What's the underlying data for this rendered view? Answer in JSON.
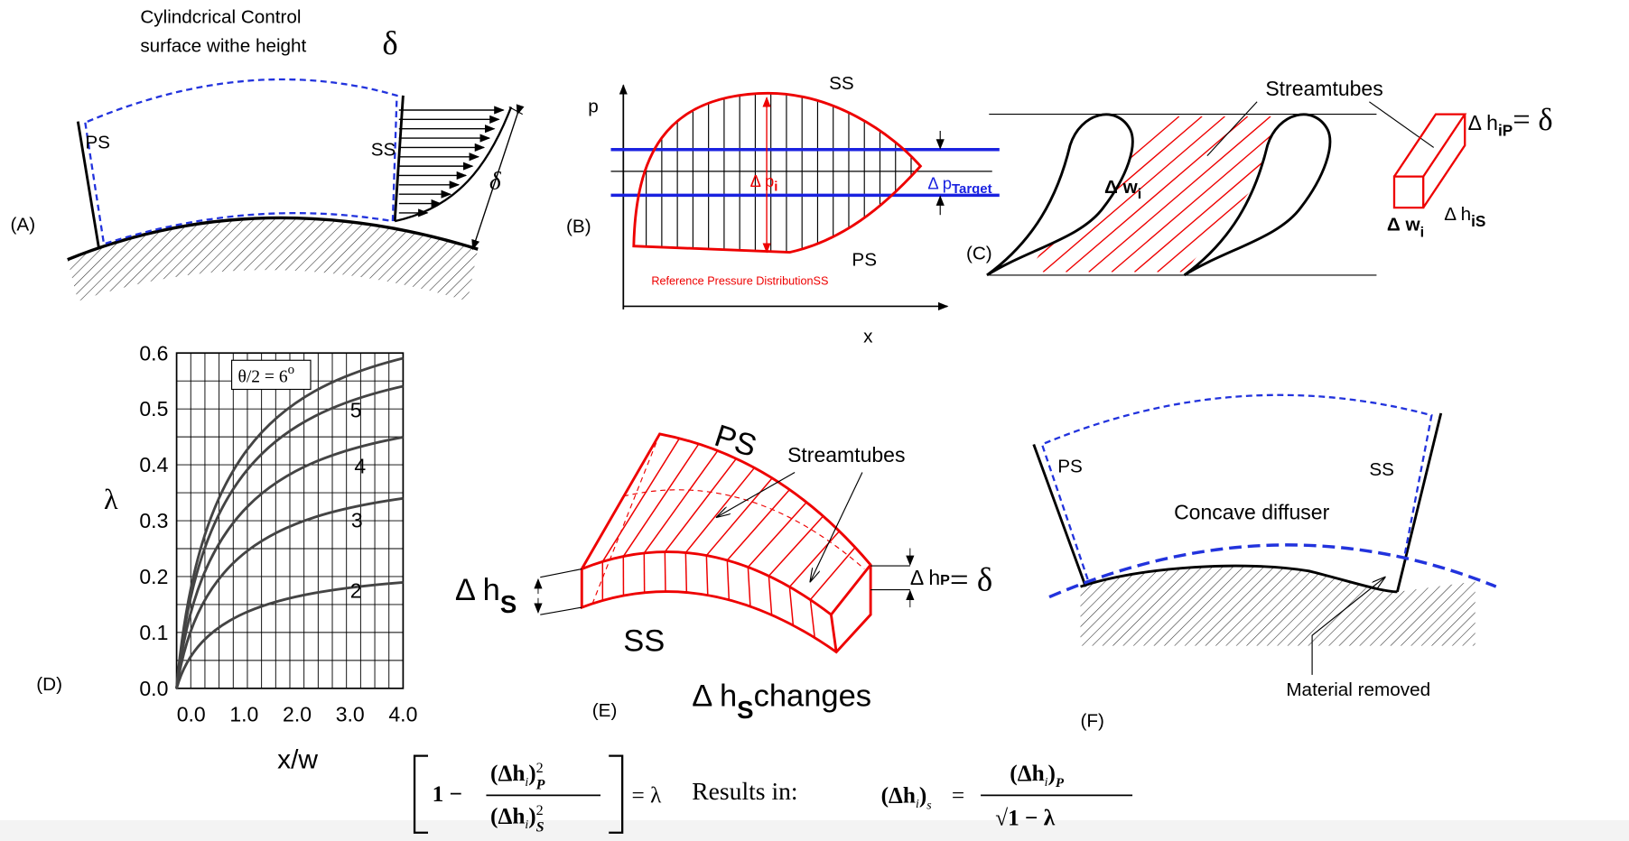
{
  "panel_a": {
    "label": "(A)",
    "caption_1": "Cylindcrical Control",
    "caption_2": "surface withe height",
    "caption_delta": "δ",
    "ps": "PS",
    "ss": "SS",
    "profile_delta": "δ"
  },
  "panel_b": {
    "label": "(B)",
    "p_axis": "p",
    "x_axis": "x",
    "ss": "SS",
    "ps": "PS",
    "dp": "Δ p",
    "dp_sub": "i",
    "dp_target": "Δ p",
    "dp_target_sub": "Target",
    "reference": "Reference Pressure DistributionSS"
  },
  "panel_c": {
    "label": "(C)",
    "streamtubes": "Streamtubes",
    "dw": "Δ w",
    "dw_sub": "i",
    "dh": "Δ h",
    "dh_sub": "iP",
    "dh_eq": "= δ",
    "box_dw": "Δ w",
    "box_dw_sub": "i",
    "box_dh": "Δ h",
    "box_dh_sub": "iS"
  },
  "panel_d": {
    "label": "(D)",
    "y_label": "λ",
    "x_label": "x/w",
    "yticks": [
      "0.6",
      "0.5",
      "0.4",
      "0.3",
      "0.2",
      "0.1",
      "0.0"
    ],
    "xticks": [
      "0.0",
      "1.0",
      "2.0",
      "3.0",
      "4.0"
    ],
    "annotation": "θ/2 = 6",
    "annotation_sup": "o",
    "curve_labels": [
      "5",
      "4",
      "3",
      "2"
    ]
  },
  "panel_e": {
    "label": "(E)",
    "ps": "PS",
    "ss": "SS",
    "streamtubes": "Streamtubes",
    "dh_left": "Δ h",
    "dh_left_sub": "S",
    "dh_right": "Δ h",
    "dh_right_sub": "P",
    "dh_right_eq": "= δ",
    "changes": "Δ h",
    "changes_sub": "S",
    "changes_text": "changes"
  },
  "panel_f": {
    "label": "(F)",
    "ps": "PS",
    "ss": "SS",
    "concave": "Concave diffuser",
    "material": "Material removed"
  },
  "formula": {
    "one_minus": "1 −",
    "num": "(Δh",
    "num_i": "i",
    "num_close": ")",
    "num_sup": "2",
    "num_sub": "P",
    "den": "(Δh",
    "den_i": "i",
    "den_close": ")",
    "den_sup": "2",
    "den_sub": "S",
    "equals_lambda": "= λ",
    "results_in": "Results in:",
    "rhs_left": "(Δh",
    "rhs_left_i": "i",
    "rhs_left_close": ")",
    "rhs_left_sub": "s",
    "rhs_eq": "=",
    "rhs_num": "(Δh",
    "rhs_num_i": "i",
    "rhs_num_close": ")",
    "rhs_num_sub": "P",
    "rhs_den": "√1 − λ"
  }
}
